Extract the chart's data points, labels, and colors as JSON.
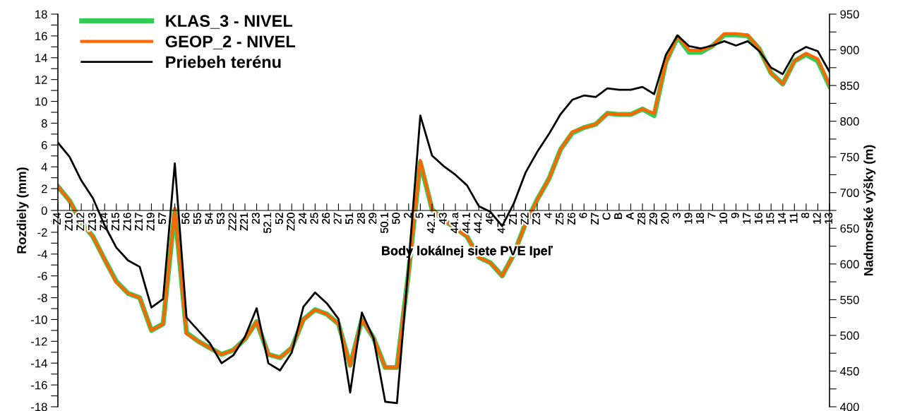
{
  "chart_data": {
    "type": "line",
    "categories": [
      "Z4",
      "Z10",
      "Z12",
      "Z13",
      "Z14",
      "Z15",
      "Z16",
      "Z17",
      "Z19",
      "57",
      null,
      "56",
      "55",
      "54",
      "53",
      "Z22",
      "Z21",
      "23",
      "52.1",
      "52",
      "Z20",
      "24",
      "25",
      "26",
      "27",
      "51",
      "28",
      "29",
      "50.1",
      "50",
      "2",
      "5",
      "42.1",
      "43",
      "44.a",
      "44.1",
      "44.2",
      "46",
      "47.1",
      "Z1",
      "Z2",
      "Z3",
      "4",
      "Z5",
      "Z6",
      "6",
      "Z7",
      "C",
      "B",
      "A",
      "Z8",
      "Z9",
      "20",
      "3",
      "19",
      "18",
      "7",
      "10",
      "9",
      "17",
      "16",
      "15",
      "14",
      "11",
      "8",
      "12",
      "13"
    ],
    "xlabel": "Body lokálnej siete PVE Ipeľ",
    "ylabel": "Rozdiely (mm)",
    "y2label": "Nadmorské výšky (m)",
    "series": [
      {
        "name": "KLAS_3 - NIVEL",
        "color": "#33cc55",
        "values": [
          2.2,
          0.9,
          -1.1,
          -2.4,
          -4.5,
          -6.5,
          -7.6,
          -8.0,
          -11.0,
          -10.4,
          0.0,
          -11.2,
          -12.0,
          -12.6,
          -13.2,
          -12.8,
          -11.8,
          -10.2,
          -13.2,
          -13.5,
          -12.6,
          -10.0,
          -9.1,
          -9.5,
          -10.4,
          -14.2,
          -10.0,
          -11.7,
          -14.4,
          -14.4,
          -5.6,
          4.4,
          0.1,
          -0.9,
          -1.6,
          -2.4,
          -4.3,
          -4.8,
          -6.0,
          -4.0,
          -1.2,
          1.0,
          2.9,
          5.6,
          7.1,
          7.6,
          7.9,
          8.9,
          8.8,
          8.8,
          9.3,
          8.7,
          13.6,
          15.9,
          14.5,
          14.5,
          15.1,
          16.1,
          16.1,
          16.0,
          14.8,
          12.6,
          11.6,
          13.7,
          14.3,
          13.7,
          11.4
        ]
      },
      {
        "name": "GEOP_2 - NIVEL",
        "color": "#ff6600",
        "values": [
          2.2,
          0.9,
          -1.1,
          -2.4,
          -4.5,
          -6.6,
          -7.6,
          -8.0,
          -11.0,
          -10.4,
          0.2,
          -11.3,
          -12.0,
          -12.6,
          -13.2,
          -12.8,
          -11.8,
          -10.2,
          -13.2,
          -13.5,
          -12.6,
          -10.0,
          -9.1,
          -9.5,
          -10.4,
          -14.2,
          -10.0,
          -11.7,
          -14.4,
          -14.4,
          -5.6,
          4.6,
          0.1,
          -0.9,
          -1.6,
          -2.4,
          -4.3,
          -4.8,
          -6.0,
          -4.0,
          -1.2,
          1.0,
          2.9,
          5.6,
          7.2,
          7.6,
          7.9,
          8.9,
          8.8,
          8.8,
          9.3,
          8.9,
          13.6,
          16.0,
          14.7,
          14.7,
          15.1,
          16.2,
          16.2,
          16.1,
          14.8,
          12.6,
          11.6,
          13.7,
          14.4,
          13.9,
          11.5
        ]
      },
      {
        "name": "Priebeh terénu",
        "color": "#000000",
        "axis": "y2",
        "values": [
          770,
          750,
          717,
          692,
          654,
          623,
          605,
          596,
          539,
          551,
          741,
          525,
          507,
          489,
          461,
          472,
          498,
          538,
          461,
          451,
          476,
          540,
          560,
          545,
          523,
          420,
          532,
          496,
          407,
          405,
          600,
          808,
          752,
          737,
          725,
          710,
          681,
          673,
          653,
          685,
          728,
          757,
          782,
          810,
          830,
          836,
          834,
          846,
          844,
          844,
          848,
          838,
          893,
          920,
          905,
          902,
          906,
          912,
          906,
          912,
          898,
          875,
          866,
          895,
          904,
          898,
          869
        ]
      }
    ],
    "ylim": [
      -18,
      18
    ],
    "yticks": [
      -18,
      {
        "value": -17,
        "label": null
      },
      -16,
      {
        "value": -15,
        "label": null
      },
      -14,
      {
        "value": -13,
        "label": null
      },
      -12,
      {
        "value": -11,
        "label": null
      },
      -10,
      {
        "value": -9,
        "label": null
      },
      -8,
      {
        "value": -7,
        "label": null
      },
      -6,
      {
        "value": -5,
        "label": null
      },
      -4,
      {
        "value": -3,
        "label": null
      },
      -2,
      {
        "value": -1,
        "label": null
      },
      0,
      {
        "value": 1,
        "label": null
      },
      2,
      {
        "value": 3,
        "label": null
      },
      4,
      {
        "value": 5,
        "label": null
      },
      6,
      {
        "value": 7,
        "label": null
      },
      8,
      {
        "value": 9,
        "label": null
      },
      10,
      {
        "value": 11,
        "label": null
      },
      12,
      {
        "value": 13,
        "label": null
      },
      14,
      {
        "value": 15,
        "label": null
      },
      16,
      {
        "value": 17,
        "label": null
      },
      18
    ],
    "y2lim": [
      400,
      950
    ],
    "y2ticks": [
      400,
      {
        "value": 425,
        "label": null
      },
      450,
      {
        "value": 475,
        "label": null
      },
      500,
      {
        "value": 525,
        "label": null
      },
      550,
      {
        "value": 575,
        "label": null
      },
      600,
      {
        "value": 625,
        "label": null
      },
      650,
      {
        "value": 675,
        "label": null
      },
      700,
      {
        "value": 725,
        "label": null
      },
      750,
      {
        "value": 775,
        "label": null
      },
      800,
      {
        "value": 825,
        "label": null
      },
      850,
      {
        "value": 875,
        "label": null
      },
      900,
      {
        "value": 925,
        "label": null
      },
      950
    ],
    "grid": false,
    "legend": "top left",
    "marker": "none",
    "line_style": "solid"
  }
}
